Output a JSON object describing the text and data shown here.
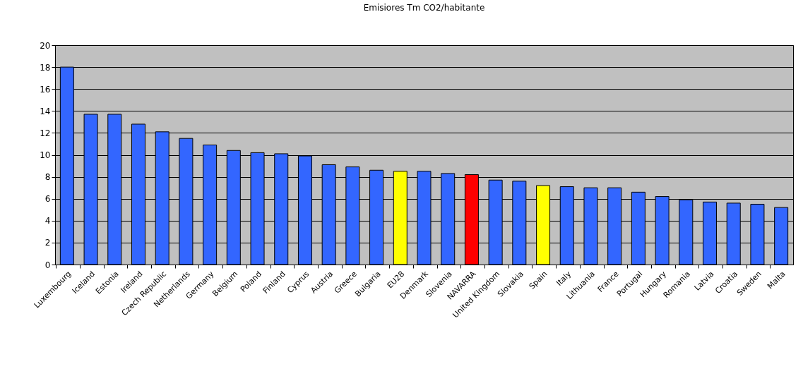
{
  "chart_data": {
    "type": "bar",
    "title": "Emisiores Tm CO2/habitante",
    "categories": [
      "Luxembourg",
      "Iceland",
      "Estonia",
      "Ireland",
      "Czech Republic",
      "Netherlands",
      "Germany",
      "Belgium",
      "Poland",
      "Finland",
      "Cyprus",
      "Austria",
      "Greece",
      "Bulgaria",
      "EU28",
      "Denmark",
      "Slovenia",
      "NAVARRA",
      "United Kingdom",
      "Slovakia",
      "Spain",
      "Italy",
      "Lithuania",
      "France",
      "Portugal",
      "Hungary",
      "Romania",
      "Latvia",
      "Croatia",
      "Sweden",
      "Malta"
    ],
    "values": [
      18.0,
      13.7,
      13.7,
      12.8,
      12.1,
      11.5,
      10.9,
      10.4,
      10.2,
      10.1,
      9.9,
      9.1,
      8.9,
      8.6,
      8.5,
      8.5,
      8.3,
      8.2,
      7.7,
      7.6,
      7.2,
      7.1,
      7.0,
      7.0,
      6.6,
      6.2,
      5.9,
      5.7,
      5.6,
      5.5,
      5.2
    ],
    "colors": [
      "#3366ff",
      "#3366ff",
      "#3366ff",
      "#3366ff",
      "#3366ff",
      "#3366ff",
      "#3366ff",
      "#3366ff",
      "#3366ff",
      "#3366ff",
      "#3366ff",
      "#3366ff",
      "#3366ff",
      "#3366ff",
      "#ffff00",
      "#3366ff",
      "#3366ff",
      "#ff0000",
      "#3366ff",
      "#3366ff",
      "#ffff00",
      "#3366ff",
      "#3366ff",
      "#3366ff",
      "#3366ff",
      "#3366ff",
      "#3366ff",
      "#3366ff",
      "#3366ff",
      "#3366ff",
      "#3366ff"
    ],
    "ylim": [
      0,
      20
    ],
    "yticks": [
      0,
      2,
      4,
      6,
      8,
      10,
      12,
      14,
      16,
      18,
      20
    ],
    "grid": "y"
  }
}
